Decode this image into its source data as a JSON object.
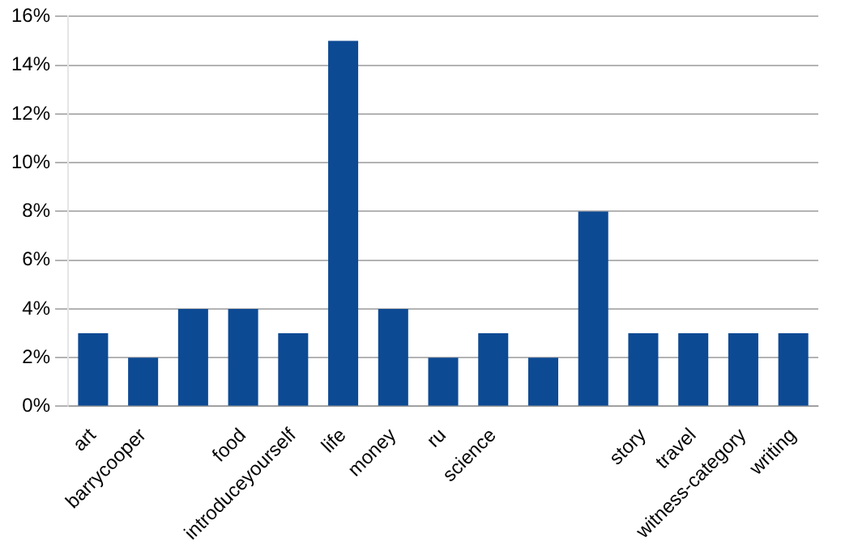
{
  "chart_data": {
    "type": "bar",
    "categories": [
      "art",
      "barrycooper",
      null,
      "food",
      "introduceyourself",
      "life",
      "money",
      "ru",
      "science",
      null,
      null,
      "story",
      "travel",
      "witness-category",
      "writing"
    ],
    "values": [
      3,
      2,
      4,
      4,
      3,
      15,
      4,
      2,
      3,
      2,
      8,
      3,
      3,
      3,
      3
    ],
    "color": "#0d4a94",
    "ylim": [
      0,
      16
    ],
    "yticks": [
      {
        "value": 0,
        "label": "0%"
      },
      {
        "value": 2,
        "label": "2%"
      },
      {
        "value": 4,
        "label": "4%"
      },
      {
        "value": 6,
        "label": "6%"
      },
      {
        "value": 8,
        "label": "8%"
      },
      {
        "value": 10,
        "label": "10%"
      },
      {
        "value": 12,
        "label": "12%"
      },
      {
        "value": 14,
        "label": "14%"
      },
      {
        "value": 16,
        "label": "16%"
      }
    ],
    "grid": "y"
  }
}
